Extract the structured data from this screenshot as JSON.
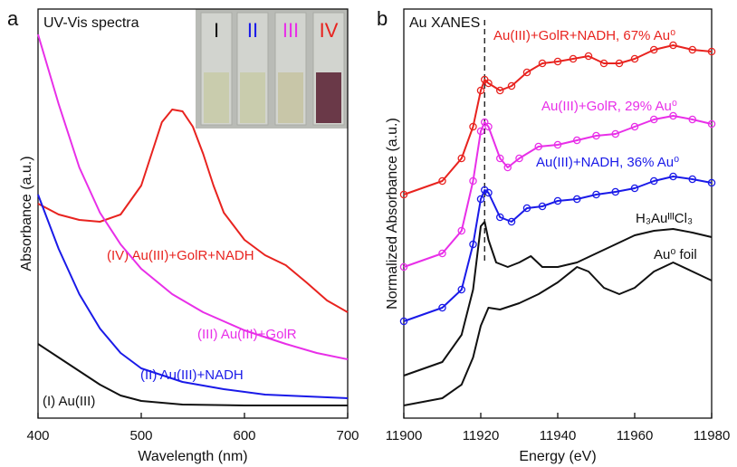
{
  "chart_data": [
    {
      "type": "line",
      "panel": "a",
      "title": "UV-Vis spectra",
      "x_label": "Wavelength (nm)",
      "y_label": "Absorbance (a.u.)",
      "xlim": [
        400,
        700
      ],
      "xticks": [
        400,
        500,
        600,
        700
      ],
      "ylim": [
        0,
        452
      ],
      "inset_labels": [
        "I",
        "II",
        "III",
        "IV"
      ],
      "inset_colors": [
        "#111111",
        "#1a1ae8",
        "#e82fe8",
        "#e8231f"
      ],
      "series": [
        {
          "name": "(IV) Au(III)+GolR+NADH",
          "color": "#e8231f",
          "markers": false,
          "x": [
            400,
            420,
            440,
            460,
            480,
            500,
            510,
            520,
            530,
            540,
            550,
            560,
            570,
            580,
            600,
            620,
            640,
            660,
            680,
            700
          ],
          "values": [
            237,
            225,
            219,
            217,
            225,
            257,
            292,
            327,
            341,
            339,
            322,
            292,
            257,
            227,
            197,
            180,
            169,
            150,
            130,
            117
          ]
        },
        {
          "name": "(III) Au(III)+GolR",
          "color": "#e82fe8",
          "markers": false,
          "x": [
            400,
            420,
            440,
            460,
            480,
            500,
            530,
            560,
            600,
            640,
            670,
            700
          ],
          "values": [
            424,
            347,
            277,
            227,
            192,
            165,
            137,
            117,
            97,
            82,
            72,
            65
          ]
        },
        {
          "name": "(II) Au(III)+NADH",
          "color": "#1a1ae8",
          "markers": false,
          "x": [
            400,
            420,
            440,
            460,
            480,
            500,
            540,
            580,
            620,
            660,
            700
          ],
          "values": [
            247,
            187,
            137,
            99,
            72,
            55,
            40,
            32,
            26,
            24,
            22
          ]
        },
        {
          "name": "(I) Au(III)",
          "color": "#111111",
          "markers": false,
          "x": [
            400,
            420,
            440,
            460,
            480,
            500,
            540,
            600,
            700
          ],
          "values": [
            82,
            67,
            52,
            37,
            25,
            19,
            15,
            14,
            14
          ]
        }
      ]
    },
    {
      "type": "line",
      "panel": "b",
      "title": "Au XANES",
      "x_label": "Energy (eV)",
      "y_label": "Normalized Absorbance (a.u.)",
      "xlim": [
        11900,
        11980
      ],
      "xticks": [
        11900,
        11920,
        11940,
        11960,
        11980
      ],
      "ylim": [
        0,
        452
      ],
      "reference_x": 11921,
      "series": [
        {
          "name": "Au(III)+GolR+NADH, 67% Au⁰",
          "color": "#e8231f",
          "markers": true,
          "x": [
            11900,
            11910,
            11915,
            11918,
            11920,
            11921,
            11922,
            11925,
            11928,
            11932,
            11936,
            11940,
            11944,
            11948,
            11952,
            11956,
            11960,
            11965,
            11970,
            11975,
            11980
          ],
          "values": [
            247,
            262,
            287,
            322,
            362,
            374,
            370,
            362,
            367,
            382,
            392,
            394,
            397,
            400,
            392,
            392,
            397,
            407,
            412,
            407,
            405
          ]
        },
        {
          "name": "Au(III)+GolR, 29% Au⁰",
          "color": "#e82fe8",
          "markers": true,
          "x": [
            11900,
            11910,
            11915,
            11918,
            11920,
            11921,
            11922,
            11925,
            11927,
            11930,
            11935,
            11940,
            11945,
            11950,
            11955,
            11960,
            11965,
            11970,
            11975,
            11980
          ],
          "values": [
            167,
            182,
            207,
            262,
            317,
            327,
            322,
            287,
            277,
            287,
            300,
            302,
            307,
            312,
            314,
            322,
            330,
            334,
            330,
            325
          ]
        },
        {
          "name": "Au(III)+NADH, 36% Au⁰",
          "color": "#1a1ae8",
          "markers": true,
          "x": [
            11900,
            11910,
            11915,
            11918,
            11920,
            11921,
            11922,
            11925,
            11928,
            11932,
            11936,
            11940,
            11945,
            11950,
            11955,
            11960,
            11965,
            11970,
            11975,
            11980
          ],
          "values": [
            107,
            122,
            142,
            192,
            242,
            252,
            249,
            222,
            217,
            232,
            234,
            240,
            242,
            247,
            250,
            254,
            262,
            267,
            264,
            260
          ]
        },
        {
          "name": "H₃AuᴵᴵᴵCl₃",
          "color": "#111111",
          "markers": false,
          "x": [
            11900,
            11910,
            11915,
            11918,
            11920,
            11921,
            11922,
            11924,
            11927,
            11930,
            11933,
            11936,
            11940,
            11945,
            11950,
            11955,
            11960,
            11965,
            11970,
            11975,
            11980
          ],
          "values": [
            47,
            62,
            92,
            142,
            212,
            217,
            197,
            172,
            167,
            172,
            179,
            167,
            167,
            172,
            182,
            192,
            202,
            207,
            209,
            205,
            200
          ]
        },
        {
          "name": "Au⁰ foil",
          "color": "#111111",
          "markers": false,
          "x": [
            11900,
            11910,
            11915,
            11918,
            11920,
            11922,
            11925,
            11930,
            11935,
            11940,
            11945,
            11948,
            11952,
            11956,
            11960,
            11965,
            11970,
            11975,
            11980
          ],
          "values": [
            14,
            22,
            37,
            67,
            102,
            122,
            120,
            127,
            137,
            150,
            167,
            162,
            144,
            137,
            144,
            162,
            172,
            162,
            152
          ]
        }
      ]
    }
  ]
}
